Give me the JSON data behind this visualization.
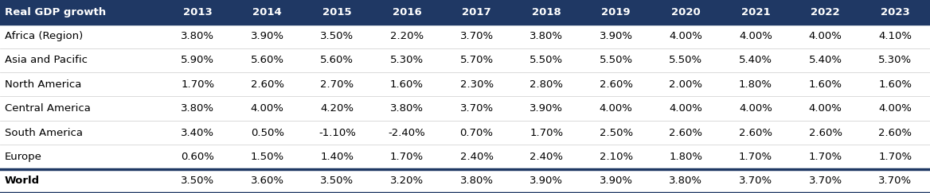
{
  "header": [
    "Real GDP growth",
    "2013",
    "2014",
    "2015",
    "2016",
    "2017",
    "2018",
    "2019",
    "2020",
    "2021",
    "2022",
    "2023"
  ],
  "rows": [
    [
      "Africa (Region)",
      "3.80%",
      "3.90%",
      "3.50%",
      "2.20%",
      "3.70%",
      "3.80%",
      "3.90%",
      "4.00%",
      "4.00%",
      "4.00%",
      "4.10%"
    ],
    [
      "Asia and Pacific",
      "5.90%",
      "5.60%",
      "5.60%",
      "5.30%",
      "5.70%",
      "5.50%",
      "5.50%",
      "5.50%",
      "5.40%",
      "5.40%",
      "5.30%"
    ],
    [
      "North America",
      "1.70%",
      "2.60%",
      "2.70%",
      "1.60%",
      "2.30%",
      "2.80%",
      "2.60%",
      "2.00%",
      "1.80%",
      "1.60%",
      "1.60%"
    ],
    [
      "Central America",
      "3.80%",
      "4.00%",
      "4.20%",
      "3.80%",
      "3.70%",
      "3.90%",
      "4.00%",
      "4.00%",
      "4.00%",
      "4.00%",
      "4.00%"
    ],
    [
      "South America",
      "3.40%",
      "0.50%",
      "-1.10%",
      "-2.40%",
      "0.70%",
      "1.70%",
      "2.50%",
      "2.60%",
      "2.60%",
      "2.60%",
      "2.60%"
    ],
    [
      "Europe",
      "0.60%",
      "1.50%",
      "1.40%",
      "1.70%",
      "2.40%",
      "2.40%",
      "2.10%",
      "1.80%",
      "1.70%",
      "1.70%",
      "1.70%"
    ]
  ],
  "world_row": [
    "World",
    "3.50%",
    "3.60%",
    "3.50%",
    "3.20%",
    "3.80%",
    "3.90%",
    "3.90%",
    "3.80%",
    "3.70%",
    "3.70%",
    "3.70%"
  ],
  "header_bg": "#1F3864",
  "header_fg": "#FFFFFF",
  "row_bg": "#FFFFFF",
  "row_fg": "#000000",
  "world_bg": "#FFFFFF",
  "world_fg": "#000000",
  "border_color": "#1F3864",
  "figsize": [
    11.68,
    2.43
  ],
  "dpi": 100
}
